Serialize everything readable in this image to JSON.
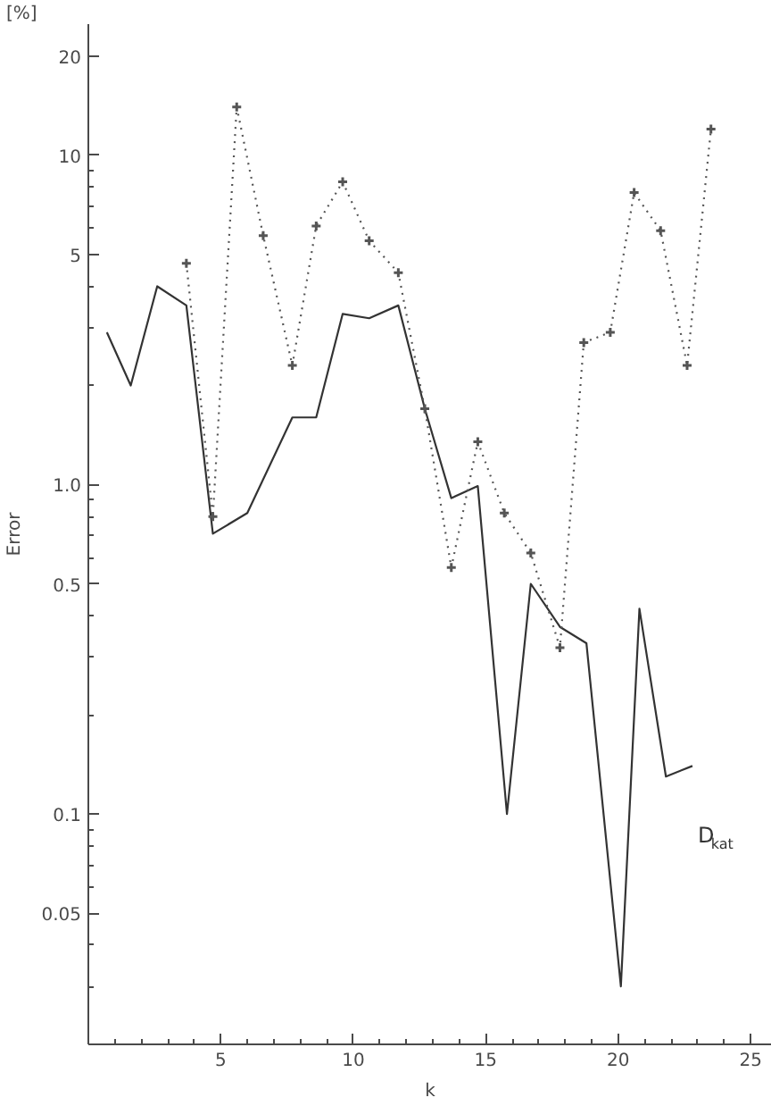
{
  "chart_data": {
    "type": "line",
    "xlabel": "k",
    "ylabel": "Error",
    "annotations": [
      "[%]"
    ],
    "log": "y",
    "xlim": [
      0,
      25.8
    ],
    "ylim": [
      0.02,
      25
    ],
    "xticks": [
      {
        "value": 1,
        "label": null
      },
      {
        "value": 2,
        "label": null
      },
      {
        "value": 3,
        "label": null
      },
      {
        "value": 4,
        "label": null
      },
      5,
      {
        "value": 6,
        "label": null
      },
      {
        "value": 7,
        "label": null
      },
      {
        "value": 8,
        "label": null
      },
      {
        "value": 9,
        "label": null
      },
      10,
      {
        "value": 11,
        "label": null
      },
      {
        "value": 12,
        "label": null
      },
      {
        "value": 13,
        "label": null
      },
      {
        "value": 14,
        "label": null
      },
      15,
      {
        "value": 16,
        "label": null
      },
      {
        "value": 17,
        "label": null
      },
      {
        "value": 18,
        "label": null
      },
      {
        "value": 19,
        "label": null
      },
      20,
      {
        "value": 21,
        "label": null
      },
      {
        "value": 22,
        "label": null
      },
      {
        "value": 23,
        "label": null
      },
      {
        "value": 24,
        "label": null
      },
      25
    ],
    "yticks": [
      {
        "value": 0.03,
        "label": null
      },
      {
        "value": 0.04,
        "label": null
      },
      0.05,
      {
        "value": 0.06,
        "label": null
      },
      {
        "value": 0.07,
        "label": null
      },
      {
        "value": 0.08,
        "label": null
      },
      {
        "value": 0.09,
        "label": null
      },
      0.1,
      {
        "value": 0.2,
        "label": null
      },
      {
        "value": 0.3,
        "label": null
      },
      {
        "value": 0.4,
        "label": null
      },
      0.5,
      {
        "value": 0.6,
        "label": null
      },
      {
        "value": 0.7,
        "label": null
      },
      {
        "value": 0.8,
        "label": null
      },
      {
        "value": 0.9,
        "label": null
      },
      {
        "value": 1,
        "label": "1.0"
      },
      {
        "value": 2,
        "label": null
      },
      {
        "value": 3,
        "label": null
      },
      {
        "value": 4,
        "label": null
      },
      5,
      {
        "value": 6,
        "label": null
      },
      {
        "value": 7,
        "label": null
      },
      {
        "value": 8,
        "label": null
      },
      {
        "value": 9,
        "label": null
      },
      10,
      20
    ],
    "grid": false,
    "legend": false,
    "series": [
      {
        "name": "D$_{kat}$",
        "color": "#333333",
        "line_style": "solid",
        "x": [
          0.7,
          1.6,
          2.6,
          3.7,
          4.7,
          6.0,
          7.7,
          8.6,
          9.6,
          10.6,
          11.7,
          12.7,
          13.7,
          14.7,
          15.8,
          16.7,
          17.8,
          18.8,
          20.1,
          20.8,
          21.8,
          22.8
        ],
        "values": [
          2.9,
          2.0,
          4.0,
          3.5,
          0.71,
          0.82,
          1.6,
          1.6,
          3.3,
          3.2,
          3.5,
          1.7,
          0.91,
          0.99,
          0.1,
          0.5,
          0.37,
          0.33,
          0.03,
          0.42,
          0.13,
          0.14
        ]
      },
      {
        "color": "#555555",
        "line_style": "dotted",
        "marker": "cross",
        "x": [
          3.7,
          4.7,
          5.6,
          6.6,
          7.7,
          8.6,
          9.6,
          10.6,
          11.7,
          12.7,
          13.7,
          14.7,
          15.7,
          16.7,
          17.8,
          18.7,
          19.7,
          20.6,
          21.6,
          22.6,
          23.5
        ],
        "values": [
          4.7,
          0.8,
          14,
          5.7,
          2.3,
          6.1,
          8.3,
          5.5,
          4.4,
          1.7,
          0.56,
          1.35,
          0.82,
          0.62,
          0.32,
          2.7,
          2.9,
          7.7,
          5.9,
          2.3,
          12
        ]
      }
    ]
  }
}
